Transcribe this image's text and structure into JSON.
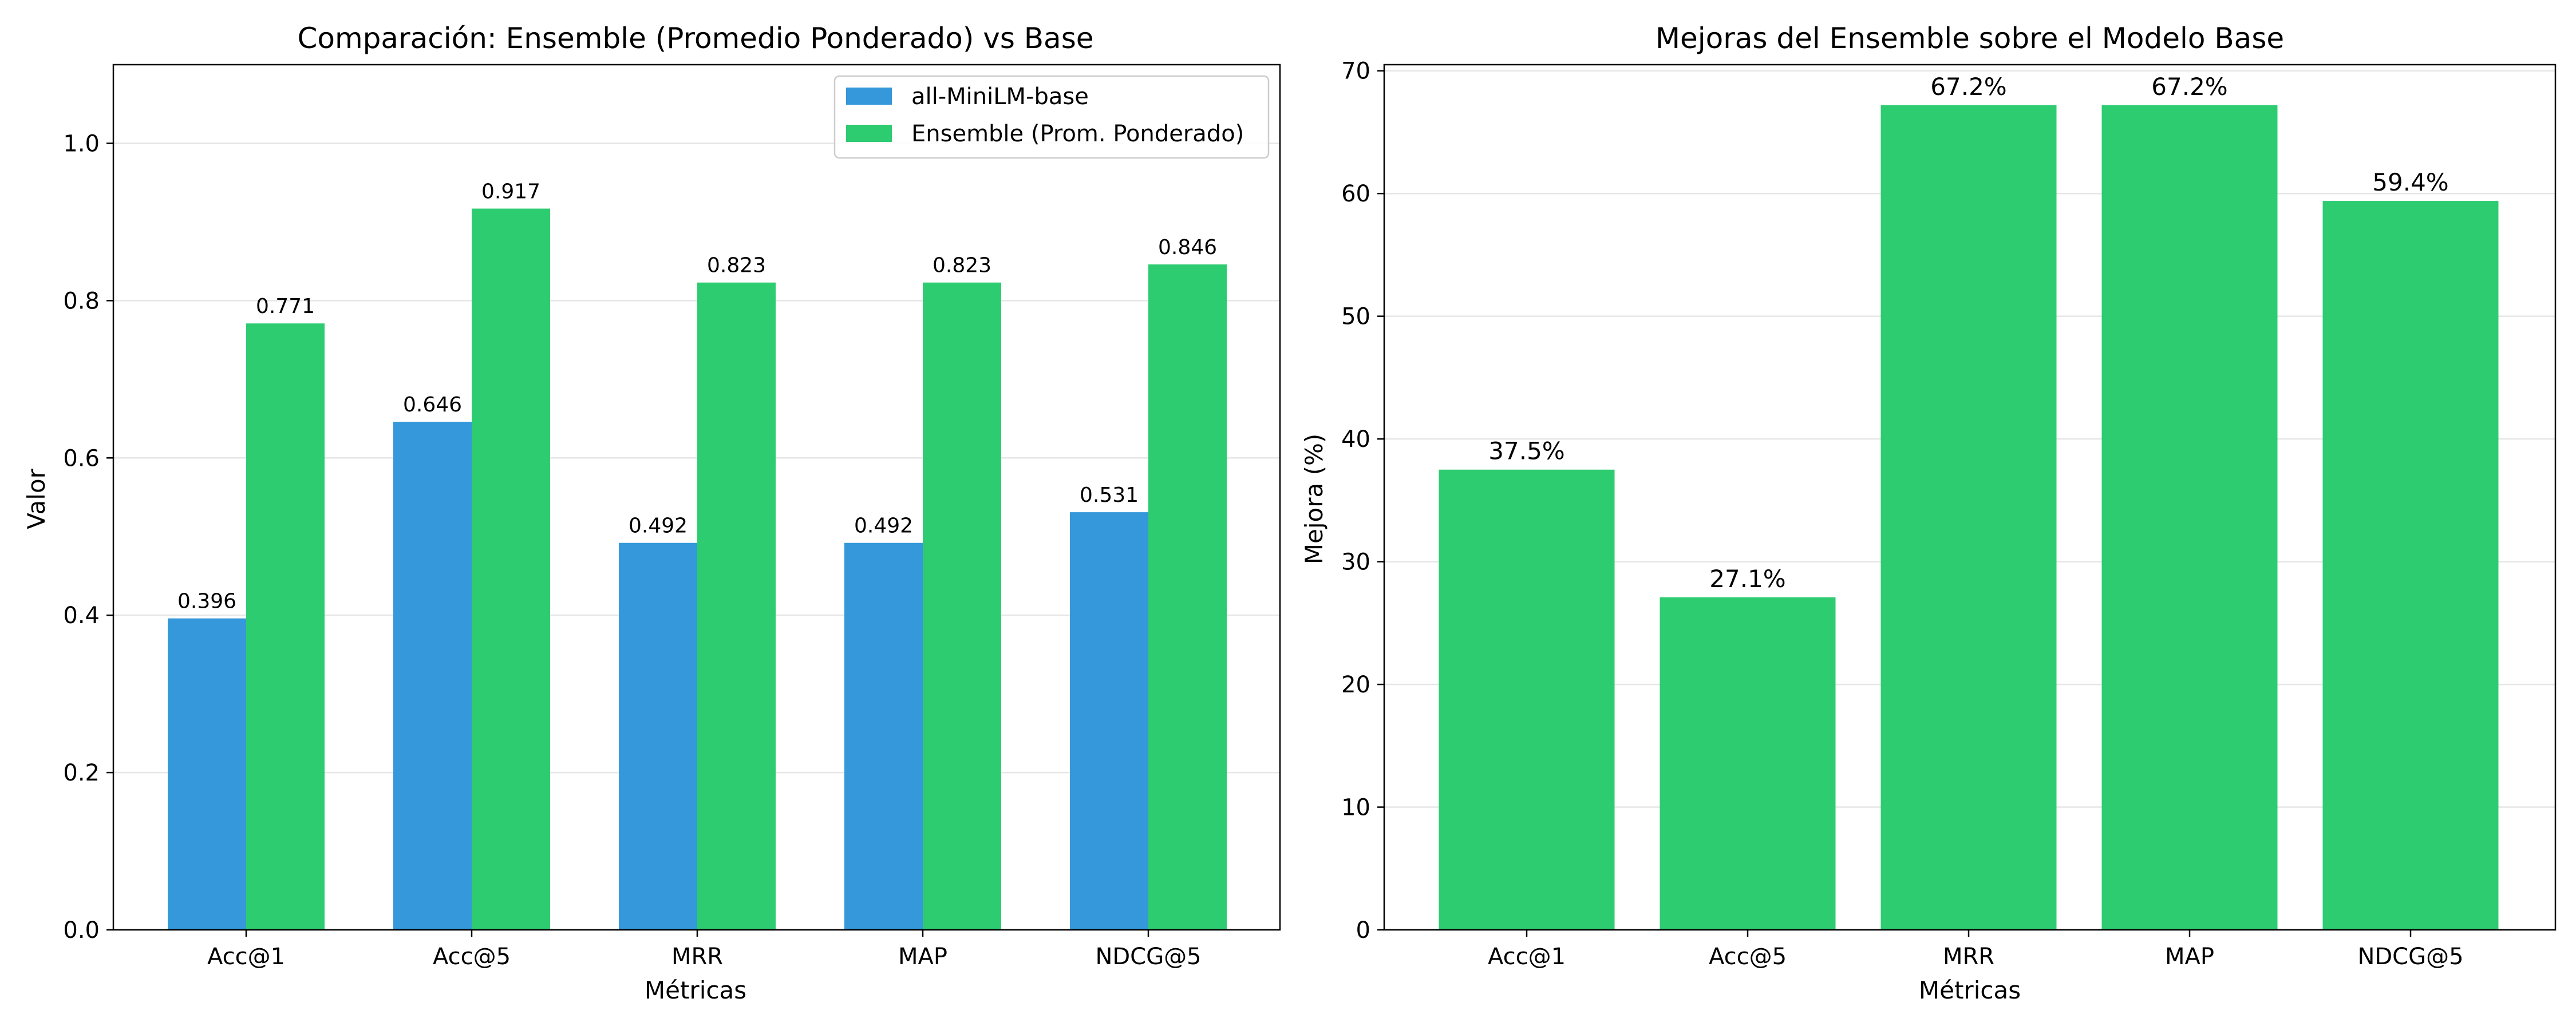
{
  "chart_data": [
    {
      "type": "bar",
      "title": "Comparación: Ensemble (Promedio Ponderado) vs Base",
      "xlabel": "Métricas",
      "ylabel": "Valor",
      "categories": [
        "Acc@1",
        "Acc@5",
        "MRR",
        "MAP",
        "NDCG@5"
      ],
      "ylim": [
        0,
        1.1
      ],
      "yticks": [
        "0.0",
        "0.2",
        "0.4",
        "0.6",
        "0.8",
        "1.0"
      ],
      "grid": "y",
      "legend_position": "top-right",
      "series": [
        {
          "name": "all-MiniLM-base",
          "color": "#3498db",
          "values": [
            0.396,
            0.646,
            0.492,
            0.492,
            0.531
          ],
          "labels": [
            "0.396",
            "0.646",
            "0.492",
            "0.492",
            "0.531"
          ]
        },
        {
          "name": "Ensemble (Prom. Ponderado)",
          "color": "#2ecc71",
          "values": [
            0.771,
            0.917,
            0.823,
            0.823,
            0.846
          ],
          "labels": [
            "0.771",
            "0.917",
            "0.823",
            "0.823",
            "0.846"
          ]
        }
      ]
    },
    {
      "type": "bar",
      "title": "Mejoras del Ensemble sobre el Modelo Base",
      "xlabel": "Métricas",
      "ylabel": "Mejora (%)",
      "categories": [
        "Acc@1",
        "Acc@5",
        "MRR",
        "MAP",
        "NDCG@5"
      ],
      "ylim": [
        0,
        70.5
      ],
      "yticks": [
        "0",
        "10",
        "20",
        "30",
        "40",
        "50",
        "60",
        "70"
      ],
      "grid": "y",
      "series": [
        {
          "color": "#2ecc71",
          "values": [
            37.5,
            27.1,
            67.2,
            67.2,
            59.4
          ],
          "labels": [
            "37.5%",
            "27.1%",
            "67.2%",
            "67.2%",
            "59.4%"
          ]
        }
      ]
    }
  ]
}
